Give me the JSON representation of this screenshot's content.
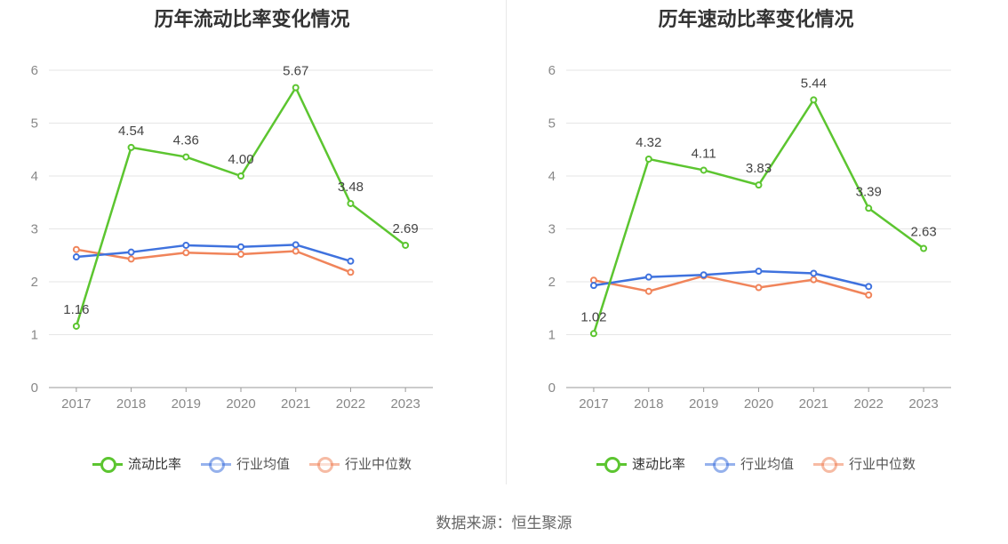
{
  "chart_data": [
    {
      "type": "line",
      "title": "历年流动比率变化情况",
      "categories": [
        "2017",
        "2018",
        "2019",
        "2020",
        "2021",
        "2022",
        "2023"
      ],
      "ylim": [
        0,
        6
      ],
      "yticks": [
        "0",
        "1",
        "2",
        "3",
        "4",
        "5",
        "6"
      ],
      "grid": true,
      "legend_position": "bottom",
      "series": [
        {
          "name": "流动比率",
          "color": "#5cc530",
          "values": [
            1.16,
            4.54,
            4.36,
            4.0,
            5.67,
            3.48,
            2.69
          ],
          "labels": [
            "1.16",
            "4.54",
            "4.36",
            "4.00",
            "5.67",
            "3.48",
            "2.69"
          ],
          "show_labels": true
        },
        {
          "name": "行业均值",
          "color": "#3f72de",
          "values": [
            2.47,
            2.56,
            2.69,
            2.66,
            2.7,
            2.39,
            null
          ],
          "show_labels": false
        },
        {
          "name": "行业中位数",
          "color": "#f0845a",
          "values": [
            2.61,
            2.43,
            2.55,
            2.52,
            2.58,
            2.18,
            null
          ],
          "show_labels": false
        }
      ]
    },
    {
      "type": "line",
      "title": "历年速动比率变化情况",
      "categories": [
        "2017",
        "2018",
        "2019",
        "2020",
        "2021",
        "2022",
        "2023"
      ],
      "ylim": [
        0,
        6
      ],
      "yticks": [
        "0",
        "1",
        "2",
        "3",
        "4",
        "5",
        "6"
      ],
      "grid": true,
      "legend_position": "bottom",
      "series": [
        {
          "name": "速动比率",
          "color": "#5cc530",
          "values": [
            1.02,
            4.32,
            4.11,
            3.83,
            5.44,
            3.39,
            2.63
          ],
          "labels": [
            "1.02",
            "4.32",
            "4.11",
            "3.83",
            "5.44",
            "3.39",
            "2.63"
          ],
          "show_labels": true
        },
        {
          "name": "行业均值",
          "color": "#3f72de",
          "values": [
            1.93,
            2.09,
            2.13,
            2.2,
            2.16,
            1.91,
            null
          ],
          "show_labels": false
        },
        {
          "name": "行业中位数",
          "color": "#f0845a",
          "values": [
            2.03,
            1.82,
            2.11,
            1.89,
            2.04,
            1.75,
            null
          ],
          "show_labels": false
        }
      ]
    }
  ],
  "source": "数据来源：恒生聚源"
}
